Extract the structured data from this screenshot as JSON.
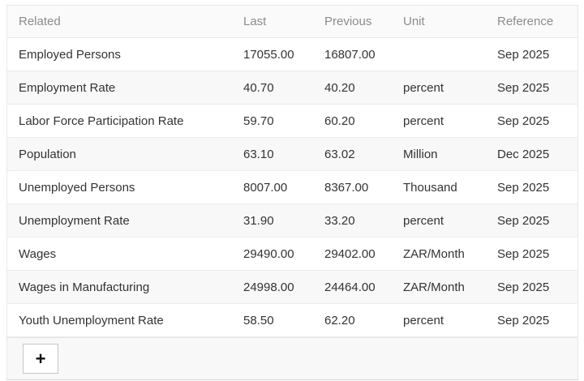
{
  "table": {
    "columns": [
      "Related",
      "Last",
      "Previous",
      "Unit",
      "Reference"
    ],
    "rows": [
      {
        "name": "Employed Persons",
        "last": "17055.00",
        "previous": "16807.00",
        "unit": "",
        "reference": "Sep 2025"
      },
      {
        "name": "Employment Rate",
        "last": "40.70",
        "previous": "40.20",
        "unit": "percent",
        "reference": "Sep 2025"
      },
      {
        "name": "Labor Force Participation Rate",
        "last": "59.70",
        "previous": "60.20",
        "unit": "percent",
        "reference": "Sep 2025"
      },
      {
        "name": "Population",
        "last": "63.10",
        "previous": "63.02",
        "unit": "Million",
        "reference": "Dec 2025"
      },
      {
        "name": "Unemployed Persons",
        "last": "8007.00",
        "previous": "8367.00",
        "unit": "Thousand",
        "reference": "Sep 2025"
      },
      {
        "name": "Unemployment Rate",
        "last": "31.90",
        "previous": "33.20",
        "unit": "percent",
        "reference": "Sep 2025"
      },
      {
        "name": "Wages",
        "last": "29490.00",
        "previous": "29402.00",
        "unit": "ZAR/Month",
        "reference": "Sep 2025"
      },
      {
        "name": "Wages in Manufacturing",
        "last": "24998.00",
        "previous": "24464.00",
        "unit": "ZAR/Month",
        "reference": "Sep 2025"
      },
      {
        "name": "Youth Unemployment Rate",
        "last": "58.50",
        "previous": "62.20",
        "unit": "percent",
        "reference": "Sep 2025"
      }
    ]
  },
  "footer": {
    "add_button_label": "+"
  },
  "colors": {
    "header_text": "#8c8c8c",
    "cell_text": "#333333",
    "stripe_bg": "#f8f8f9",
    "footer_bg": "#f8f8f8",
    "border": "#e8e8e8"
  }
}
